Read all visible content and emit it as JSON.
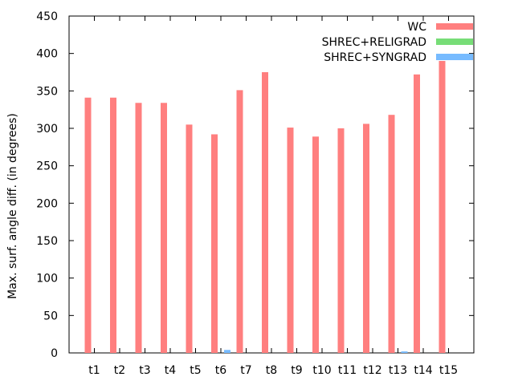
{
  "chart_data": {
    "type": "bar",
    "title": "",
    "xlabel": "",
    "ylabel": "Max. surf. angle diff. (in degrees)",
    "ylim": [
      0,
      450
    ],
    "yticks": [
      0,
      50,
      100,
      150,
      200,
      250,
      300,
      350,
      400,
      450
    ],
    "grid": false,
    "legend_position": "top-right",
    "categories": [
      "t1",
      "t2",
      "t3",
      "t4",
      "t5",
      "t6",
      "t7",
      "t8",
      "t9",
      "t10",
      "t11",
      "t12",
      "t13",
      "t14",
      "t15"
    ],
    "series": [
      {
        "name": "WC",
        "color": "#ff7f7f",
        "values": [
          341,
          341,
          334,
          334,
          305,
          292,
          351,
          375,
          301,
          289,
          300,
          306,
          318,
          372,
          390
        ]
      },
      {
        "name": "SHREC+RELIGRAD",
        "color": "#77dd77",
        "values": [
          0,
          0,
          0,
          0,
          0,
          0,
          0,
          0,
          0,
          0,
          0,
          0,
          0,
          0,
          0
        ]
      },
      {
        "name": "SHREC+SYNGRAD",
        "color": "#77bbff",
        "values": [
          0,
          0,
          0,
          0,
          0,
          4,
          0,
          0,
          0,
          0,
          0,
          0,
          2,
          0,
          0
        ]
      }
    ]
  }
}
